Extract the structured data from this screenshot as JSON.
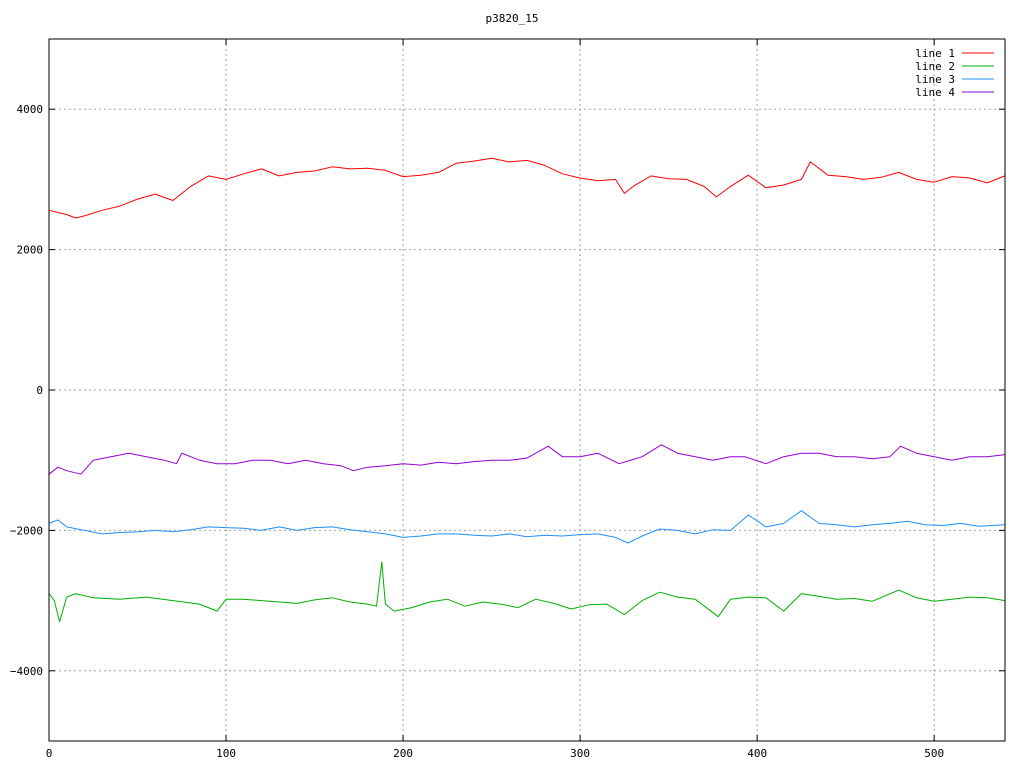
{
  "chart_data": {
    "type": "line",
    "title": "p3820_15",
    "xlabel": "",
    "ylabel": "",
    "xlim": [
      0,
      540
    ],
    "ylim": [
      -5000,
      5000
    ],
    "x_ticks": [
      0,
      100,
      200,
      300,
      400,
      500
    ],
    "y_ticks": [
      -4000,
      -2000,
      0,
      2000,
      4000
    ],
    "grid": true,
    "legend_position": "top-right",
    "series": [
      {
        "name": "line 1",
        "color": "#ff0000",
        "x": [
          0,
          10,
          15,
          20,
          30,
          40,
          50,
          60,
          70,
          80,
          90,
          100,
          110,
          120,
          130,
          140,
          150,
          160,
          170,
          180,
          190,
          200,
          210,
          220,
          230,
          240,
          250,
          260,
          270,
          280,
          290,
          300,
          310,
          320,
          325,
          330,
          340,
          350,
          360,
          370,
          377,
          385,
          395,
          405,
          415,
          425,
          430,
          440,
          450,
          460,
          470,
          480,
          490,
          500,
          510,
          520,
          530,
          540
        ],
        "y": [
          2560,
          2500,
          2450,
          2480,
          2560,
          2620,
          2720,
          2790,
          2700,
          2900,
          3050,
          3000,
          3080,
          3150,
          3050,
          3100,
          3120,
          3180,
          3150,
          3160,
          3130,
          3040,
          3060,
          3100,
          3230,
          3260,
          3300,
          3250,
          3270,
          3200,
          3080,
          3020,
          2980,
          3000,
          2800,
          2900,
          3050,
          3010,
          3000,
          2900,
          2750,
          2900,
          3060,
          2880,
          2920,
          3000,
          3250,
          3060,
          3040,
          3000,
          3030,
          3100,
          3000,
          2960,
          3040,
          3020,
          2950,
          3050
        ]
      },
      {
        "name": "line 2",
        "color": "#00b000",
        "x": [
          0,
          3,
          6,
          10,
          15,
          25,
          40,
          55,
          70,
          85,
          95,
          100,
          110,
          120,
          130,
          140,
          150,
          160,
          170,
          180,
          185,
          188,
          190,
          195,
          205,
          215,
          225,
          235,
          245,
          255,
          265,
          275,
          285,
          295,
          305,
          315,
          325,
          335,
          345,
          355,
          365,
          378,
          385,
          395,
          405,
          415,
          425,
          435,
          445,
          455,
          465,
          480,
          490,
          500,
          510,
          520,
          530,
          540
        ],
        "y": [
          -2900,
          -3000,
          -3300,
          -2950,
          -2900,
          -2960,
          -2980,
          -2950,
          -3000,
          -3050,
          -3150,
          -2980,
          -2980,
          -3000,
          -3020,
          -3040,
          -2990,
          -2960,
          -3020,
          -3050,
          -3080,
          -2450,
          -3050,
          -3150,
          -3100,
          -3020,
          -2980,
          -3080,
          -3020,
          -3050,
          -3100,
          -2980,
          -3040,
          -3120,
          -3060,
          -3050,
          -3200,
          -3000,
          -2880,
          -2950,
          -2980,
          -3230,
          -2980,
          -2950,
          -2960,
          -3150,
          -2900,
          -2940,
          -2980,
          -2970,
          -3010,
          -2850,
          -2960,
          -3010,
          -2980,
          -2950,
          -2960,
          -3000
        ]
      },
      {
        "name": "line 3",
        "color": "#1e90ff",
        "x": [
          0,
          5,
          10,
          20,
          30,
          40,
          50,
          60,
          70,
          80,
          90,
          100,
          110,
          120,
          130,
          140,
          150,
          160,
          170,
          180,
          190,
          200,
          210,
          220,
          230,
          240,
          250,
          260,
          270,
          280,
          290,
          300,
          310,
          320,
          327,
          335,
          345,
          355,
          365,
          375,
          385,
          395,
          405,
          415,
          425,
          435,
          445,
          455,
          465,
          475,
          485,
          495,
          505,
          515,
          525,
          540
        ],
        "y": [
          -1900,
          -1850,
          -1950,
          -2000,
          -2050,
          -2030,
          -2020,
          -2000,
          -2020,
          -1990,
          -1950,
          -1960,
          -1970,
          -2000,
          -1950,
          -2000,
          -1960,
          -1950,
          -1990,
          -2020,
          -2050,
          -2100,
          -2080,
          -2050,
          -2050,
          -2070,
          -2080,
          -2050,
          -2090,
          -2070,
          -2080,
          -2060,
          -2050,
          -2100,
          -2180,
          -2080,
          -1980,
          -2000,
          -2050,
          -1990,
          -2000,
          -1780,
          -1950,
          -1900,
          -1720,
          -1900,
          -1920,
          -1950,
          -1920,
          -1900,
          -1870,
          -1920,
          -1930,
          -1900,
          -1940,
          -1920
        ]
      },
      {
        "name": "line 4",
        "color": "#9400d3",
        "x": [
          0,
          5,
          10,
          18,
          25,
          35,
          45,
          55,
          65,
          72,
          75,
          85,
          95,
          105,
          115,
          125,
          135,
          145,
          155,
          165,
          172,
          180,
          190,
          200,
          210,
          220,
          230,
          240,
          250,
          260,
          270,
          282,
          290,
          300,
          310,
          322,
          335,
          346,
          355,
          365,
          375,
          385,
          393,
          405,
          415,
          425,
          435,
          445,
          455,
          465,
          475,
          481,
          490,
          500,
          510,
          520,
          530,
          540
        ],
        "y": [
          -1200,
          -1100,
          -1150,
          -1200,
          -1000,
          -950,
          -900,
          -950,
          -1000,
          -1050,
          -900,
          -1000,
          -1050,
          -1050,
          -1000,
          -1000,
          -1050,
          -1000,
          -1050,
          -1080,
          -1150,
          -1100,
          -1080,
          -1050,
          -1070,
          -1030,
          -1050,
          -1020,
          -1000,
          -1000,
          -970,
          -800,
          -950,
          -950,
          -900,
          -1050,
          -950,
          -780,
          -900,
          -950,
          -1000,
          -950,
          -950,
          -1050,
          -950,
          -900,
          -900,
          -950,
          -950,
          -980,
          -950,
          -800,
          -900,
          -950,
          -1000,
          -950,
          -950,
          -920
        ]
      }
    ]
  }
}
